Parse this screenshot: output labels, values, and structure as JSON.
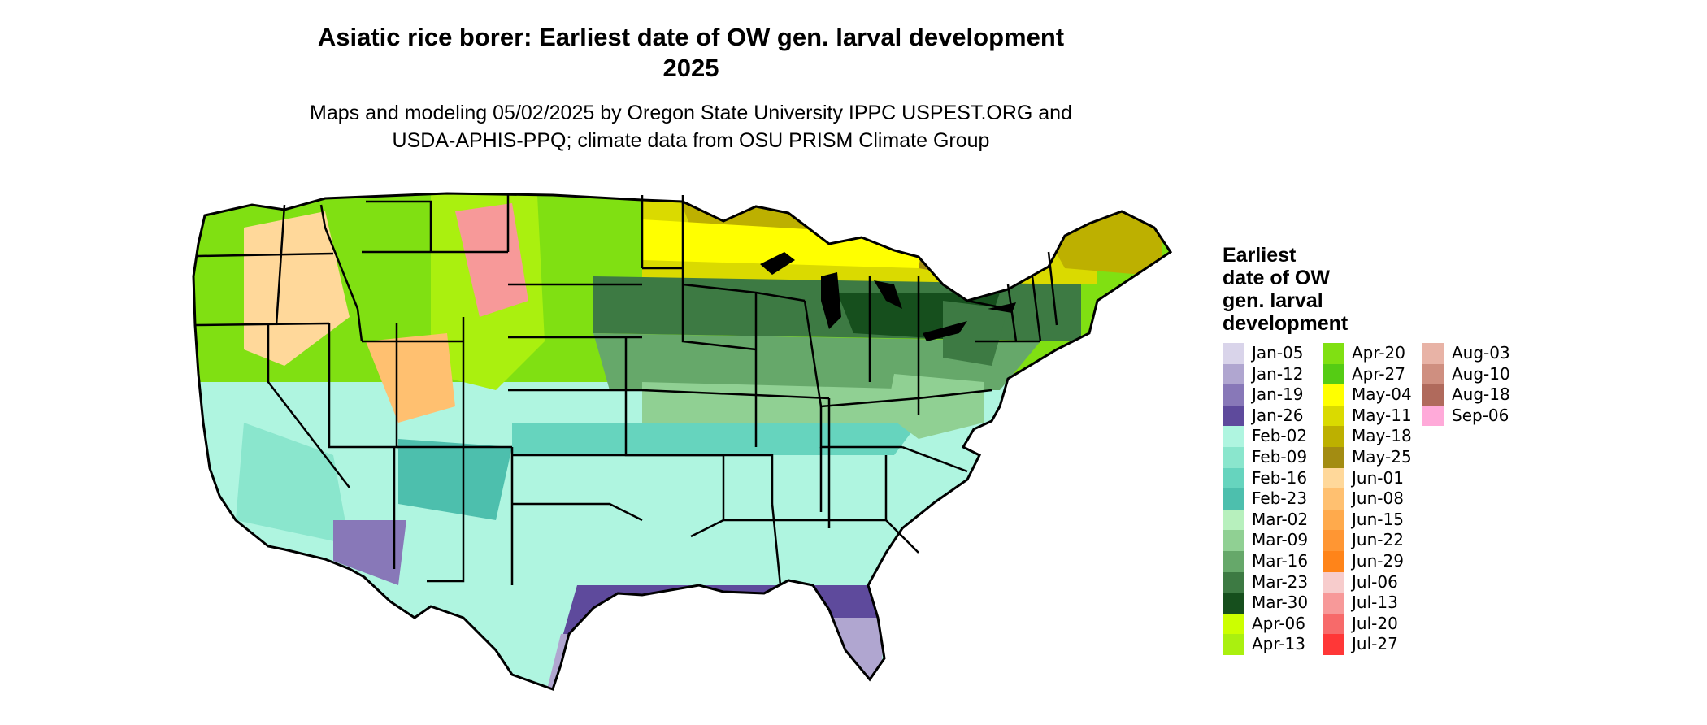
{
  "title_line1": "Asiatic rice borer: Earliest date of OW gen. larval development",
  "title_line2": "2025",
  "subtitle_line1": "Maps and modeling 05/02/2025 by Oregon State University IPPC USPEST.ORG and",
  "subtitle_line2": "USDA-APHIS-PPQ; climate data from OSU PRISM Climate Group",
  "legend": {
    "title_lines": [
      "Earliest",
      "date of OW",
      "gen. larval",
      "development"
    ],
    "items": [
      {
        "label": "Jan-05",
        "color": "#d9d4ea"
      },
      {
        "label": "Jan-12",
        "color": "#b0a6d0"
      },
      {
        "label": "Jan-19",
        "color": "#8878b8"
      },
      {
        "label": "Jan-26",
        "color": "#5e4a9c"
      },
      {
        "label": "Feb-02",
        "color": "#aff5e0"
      },
      {
        "label": "Feb-09",
        "color": "#8ae6cd"
      },
      {
        "label": "Feb-16",
        "color": "#66d4be"
      },
      {
        "label": "Feb-23",
        "color": "#4dbfad"
      },
      {
        "label": "Mar-02",
        "color": "#b7f0bd"
      },
      {
        "label": "Mar-09",
        "color": "#90d093"
      },
      {
        "label": "Mar-16",
        "color": "#66a86a"
      },
      {
        "label": "Mar-23",
        "color": "#3d7a43"
      },
      {
        "label": "Mar-30",
        "color": "#164f1d"
      },
      {
        "label": "Apr-06",
        "color": "#ccff00"
      },
      {
        "label": "Apr-13",
        "color": "#aaf00f"
      },
      {
        "label": "Apr-20",
        "color": "#80e012"
      },
      {
        "label": "Apr-27",
        "color": "#55cc14"
      },
      {
        "label": "May-04",
        "color": "#ffff00"
      },
      {
        "label": "May-11",
        "color": "#dada00"
      },
      {
        "label": "May-18",
        "color": "#bdb000"
      },
      {
        "label": "May-25",
        "color": "#a38c12"
      },
      {
        "label": "Jun-01",
        "color": "#ffd89a"
      },
      {
        "label": "Jun-08",
        "color": "#ffc070"
      },
      {
        "label": "Jun-15",
        "color": "#ffaa4c"
      },
      {
        "label": "Jun-22",
        "color": "#ff9633"
      },
      {
        "label": "Jun-29",
        "color": "#ff8419"
      },
      {
        "label": "Jul-06",
        "color": "#f7cccc"
      },
      {
        "label": "Jul-13",
        "color": "#f79999"
      },
      {
        "label": "Jul-20",
        "color": "#f76a6a"
      },
      {
        "label": "Jul-27",
        "color": "#ff3737"
      },
      {
        "label": "Aug-03",
        "color": "#e8b3a6"
      },
      {
        "label": "Aug-10",
        "color": "#cf8f80"
      },
      {
        "label": "Aug-18",
        "color": "#b06a5c"
      },
      {
        "label": "Sep-06",
        "color": "#ffaad9"
      }
    ]
  }
}
